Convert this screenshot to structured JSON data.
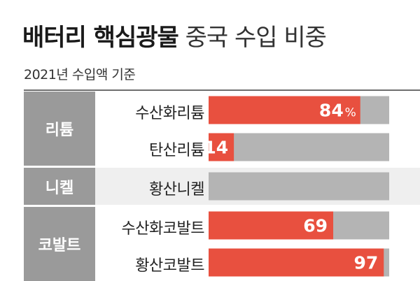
{
  "chart_data": {
    "type": "bar",
    "orientation": "horizontal",
    "title_bold": "배터리 핵심광물",
    "title_light": "중국 수입 비중",
    "subtitle": "2021년 수입액 기준",
    "unit": "%",
    "xlim": [
      0,
      100
    ],
    "groups": [
      {
        "name": "리튬",
        "items": [
          {
            "label": "수산화리튬",
            "value": 84,
            "value_label": "84",
            "show_unit": true
          },
          {
            "label": "탄산리튬",
            "value": 14,
            "value_label": "14",
            "show_unit": false
          }
        ]
      },
      {
        "name": "니켈",
        "items": [
          {
            "label": "황산니켈",
            "value": 0,
            "value_label": "",
            "show_unit": false
          }
        ]
      },
      {
        "name": "코발트",
        "items": [
          {
            "label": "수산화코발트",
            "value": 69,
            "value_label": "69",
            "show_unit": false
          },
          {
            "label": "황산코발트",
            "value": 97,
            "value_label": "97",
            "show_unit": false
          }
        ]
      }
    ],
    "colors": {
      "bar": "#e8503f",
      "track": "#b4b4b4",
      "group_bg": "#9a9a9a",
      "alt_band": "#efefef"
    }
  }
}
